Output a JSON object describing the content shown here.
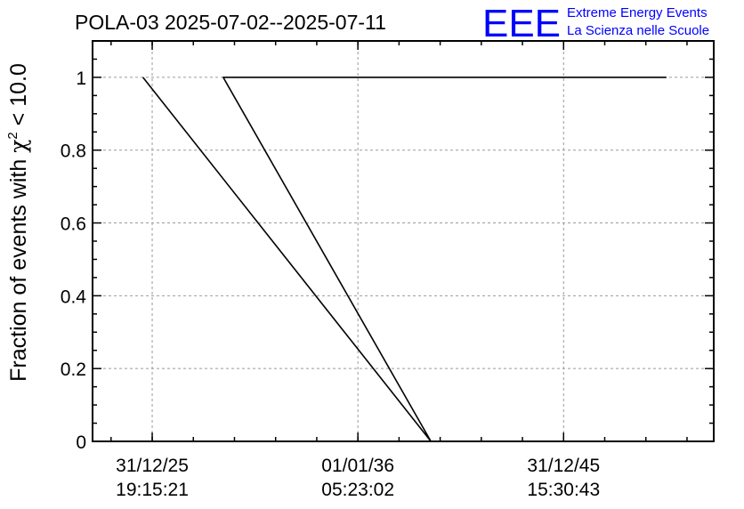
{
  "header": {
    "title": "POLA-03 2025-07-02--2025-07-11",
    "logo_text": "EEE",
    "org_line1": "Extreme Energy Events",
    "org_line2": "La Scienza nelle Scuole"
  },
  "colors": {
    "brand": "#0000ff",
    "axis": "#000000",
    "grid": "#9a9a9a",
    "series": "#000000"
  },
  "chart_data": {
    "type": "line",
    "title": "POLA-03 2025-07-02--2025-07-11",
    "ylabel_prefix": "Fraction of events with ",
    "ylabel_chi": "χ",
    "ylabel_sup": "2",
    "ylabel_suffix": " < 10.0",
    "xlabel": "",
    "ylim": [
      0,
      1.1
    ],
    "yticks": [
      {
        "value": 0,
        "label": "0"
      },
      {
        "value": 0.2,
        "label": "0.2"
      },
      {
        "value": 0.4,
        "label": "0.4"
      },
      {
        "value": 0.6,
        "label": "0.6"
      },
      {
        "value": 0.8,
        "label": "0.8"
      },
      {
        "value": 1,
        "label": "1"
      }
    ],
    "x_range_years": [
      2023.1,
      2053.3
    ],
    "xticks": [
      {
        "value": 2026.0,
        "date": "31/12/25",
        "time": "19:15:21"
      },
      {
        "value": 2036.0,
        "date": "01/01/36",
        "time": "05:23:02"
      },
      {
        "value": 2046.0,
        "date": "31/12/45",
        "time": "15:30:43"
      }
    ],
    "x_minor_step_years": 2.0,
    "grid": true,
    "series": [
      {
        "points": [
          [
            2025.55,
            1.0
          ],
          [
            2039.55,
            0.0
          ],
          [
            2029.45,
            1.0
          ],
          [
            2051.0,
            1.0
          ]
        ]
      }
    ]
  }
}
